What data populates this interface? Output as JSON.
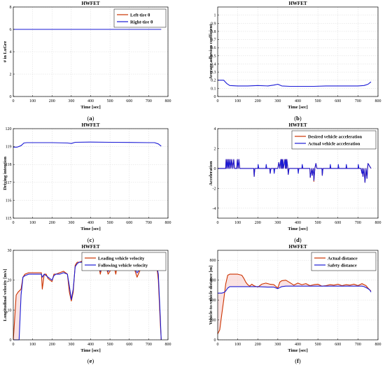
{
  "figure": {
    "background": "#ffffff",
    "red": "#cc3300",
    "blue": "#1a1ad6",
    "fill": "#f6caca"
  },
  "chart_data": [
    {
      "id": "a",
      "type": "line",
      "caption_letter": "a",
      "title": "HWFET",
      "xlabel": "Time [sec]",
      "ylabel": "# in LuGre",
      "xlim": [
        0,
        800
      ],
      "ylim": [
        0,
        8
      ],
      "xticks": [
        0,
        100,
        200,
        300,
        400,
        500,
        600,
        700,
        800
      ],
      "yticks": [
        0,
        2,
        4,
        6,
        8
      ],
      "legend": "top-right",
      "series": [
        {
          "name": "Left-tire θ",
          "color": "#cc3300",
          "x": [
            0,
            765
          ],
          "y": [
            6,
            6
          ]
        },
        {
          "name": "Right-tire θ",
          "color": "#1a1ad6",
          "x": [
            0,
            765
          ],
          "y": [
            6,
            6
          ]
        }
      ]
    },
    {
      "id": "b",
      "type": "line",
      "caption_letter": "b",
      "title": "HWFET",
      "xlabel": "Time [sec]",
      "ylabel": "Average adhesion coefficient",
      "xlim": [
        0,
        800
      ],
      "ylim": [
        0,
        1.1
      ],
      "xticks": [
        0,
        100,
        200,
        300,
        400,
        500,
        600,
        700,
        800
      ],
      "yticks": [
        0,
        0.1,
        0.2,
        0.3,
        0.4,
        0.5,
        0.6,
        0.7,
        0.8,
        0.9,
        1
      ],
      "series": [
        {
          "name": "",
          "color": "#1a1ad6",
          "x": [
            0,
            30,
            45,
            60,
            100,
            150,
            200,
            250,
            280,
            300,
            320,
            360,
            420,
            480,
            540,
            600,
            650,
            700,
            730,
            750,
            765
          ],
          "y": [
            0.2,
            0.2,
            0.16,
            0.135,
            0.13,
            0.13,
            0.135,
            0.13,
            0.14,
            0.15,
            0.13,
            0.125,
            0.125,
            0.125,
            0.13,
            0.13,
            0.13,
            0.13,
            0.135,
            0.15,
            0.18
          ]
        }
      ]
    },
    {
      "id": "c",
      "type": "line",
      "caption_letter": "c",
      "title": "HWFET",
      "xlabel": "Time [sec]",
      "ylabel": "Driving intention",
      "xlim": [
        0,
        800
      ],
      "ylim": [
        115,
        120
      ],
      "xticks": [
        0,
        100,
        200,
        300,
        400,
        500,
        600,
        700,
        800
      ],
      "yticks": [
        115,
        116,
        117,
        118,
        119,
        120
      ],
      "series": [
        {
          "name": "",
          "color": "#1a1ad6",
          "x": [
            0,
            20,
            40,
            55,
            70,
            100,
            200,
            280,
            300,
            320,
            400,
            500,
            600,
            700,
            730,
            750,
            765
          ],
          "y": [
            118.97,
            118.97,
            119.05,
            119.2,
            119.22,
            119.22,
            119.22,
            119.2,
            119.17,
            119.24,
            119.25,
            119.24,
            119.23,
            119.22,
            119.22,
            119.15,
            119.02
          ]
        }
      ]
    },
    {
      "id": "d",
      "type": "line",
      "caption_letter": "d",
      "title": "HWFET",
      "xlabel": "Time [sec]",
      "ylabel": "Acceleration",
      "xlim": [
        0,
        800
      ],
      "ylim": [
        -5,
        4
      ],
      "xticks": [
        0,
        100,
        200,
        300,
        400,
        500,
        600,
        700,
        800
      ],
      "yticks": [
        -4,
        -2,
        0,
        2,
        4
      ],
      "legend": "top-right",
      "series": [
        {
          "name": "Desired vehicle acceleration",
          "color": "#cc3300",
          "x": [
            0,
            40,
            42,
            45,
            48,
            52,
            55,
            58,
            62,
            66,
            70,
            75,
            80,
            84,
            95,
            98,
            102,
            106,
            110,
            115,
            180,
            182,
            185,
            188,
            260,
            262,
            265,
            268,
            300,
            305,
            310,
            315,
            318,
            320,
            322,
            325,
            328,
            335,
            338,
            340,
            343,
            345,
            350,
            352,
            356,
            360,
            365,
            460,
            462,
            470,
            472,
            478,
            480,
            485,
            490,
            495,
            520,
            522,
            525,
            528,
            715,
            720,
            722,
            725,
            730,
            735,
            740,
            745,
            748,
            750,
            765
          ],
          "y": [
            0,
            0,
            0.9,
            0,
            0.9,
            0,
            0.9,
            0,
            0.9,
            0,
            0.9,
            0,
            0.9,
            0,
            0,
            0.9,
            0,
            0.9,
            0,
            0,
            0,
            -0.8,
            0,
            0,
            0,
            -0.5,
            0,
            0,
            0,
            0.6,
            0,
            0.9,
            0,
            0.9,
            0,
            0.9,
            0,
            0.9,
            0,
            0.9,
            0,
            0.9,
            0,
            -0.6,
            0,
            0,
            0,
            0,
            -0.9,
            0,
            -0.7,
            0,
            -1.3,
            0,
            0.5,
            0,
            0,
            -0.7,
            0,
            0,
            0,
            -0.5,
            0,
            -0.8,
            0,
            -1.4,
            0,
            -1,
            0,
            0.5,
            0
          ]
        },
        {
          "name": "Actual vehicle acceleration",
          "color": "#1a1ad6",
          "x": [
            0,
            40,
            42,
            45,
            48,
            52,
            55,
            58,
            62,
            66,
            70,
            75,
            80,
            84,
            95,
            98,
            102,
            106,
            110,
            115,
            180,
            182,
            185,
            188,
            200,
            202,
            205,
            208,
            240,
            242,
            245,
            248,
            260,
            262,
            265,
            268,
            280,
            282,
            285,
            288,
            300,
            305,
            310,
            315,
            318,
            320,
            322,
            325,
            328,
            335,
            338,
            340,
            343,
            345,
            350,
            352,
            356,
            360,
            365,
            400,
            402,
            405,
            408,
            420,
            422,
            425,
            428,
            460,
            462,
            470,
            472,
            478,
            480,
            485,
            490,
            495,
            520,
            522,
            525,
            528,
            560,
            562,
            565,
            568,
            600,
            602,
            605,
            608,
            640,
            642,
            645,
            648,
            700,
            702,
            705,
            708,
            715,
            720,
            722,
            725,
            730,
            735,
            740,
            745,
            748,
            750,
            765
          ],
          "y": [
            0,
            0,
            0.9,
            0,
            0.9,
            0,
            0.9,
            0,
            0.9,
            0,
            0.9,
            0,
            0.9,
            0,
            0,
            0.9,
            0,
            0.9,
            0,
            0,
            0,
            -0.8,
            0,
            0,
            0,
            0.4,
            0,
            0,
            0,
            0.4,
            0,
            0,
            0,
            -0.5,
            0,
            0,
            0,
            -0.5,
            0,
            0,
            0,
            0.6,
            0,
            0.9,
            0,
            0.9,
            0,
            0.9,
            0,
            0.9,
            0,
            0.9,
            0,
            0.9,
            0,
            -0.6,
            0,
            0,
            0,
            0,
            -0.5,
            0,
            0,
            0,
            0.4,
            0,
            0,
            0,
            -0.9,
            0,
            -0.7,
            0,
            -1.2,
            0,
            0.5,
            0,
            0,
            -0.7,
            0,
            0,
            0,
            0.4,
            0,
            0,
            0,
            0.4,
            0,
            0,
            0,
            0.4,
            0,
            0,
            0,
            0.4,
            0,
            0,
            0,
            -0.5,
            0,
            -0.8,
            0,
            -1.4,
            0,
            -1,
            0,
            0.5,
            0
          ]
        }
      ]
    },
    {
      "id": "e",
      "type": "line",
      "caption_letter": "e",
      "title": "HWFET",
      "xlabel": "Time [sec]",
      "ylabel": "Longitudinal velocity [m/s]",
      "xlim": [
        0,
        800
      ],
      "ylim": [
        0,
        30
      ],
      "xticks": [
        0,
        100,
        200,
        300,
        400,
        500,
        600,
        700,
        800
      ],
      "yticks": [
        0,
        10,
        20,
        30
      ],
      "legend": "top-right",
      "series": [
        {
          "name": "Leading vehicle velocity",
          "color": "#cc3300",
          "x": [
            0,
            5,
            15,
            25,
            40,
            50,
            60,
            80,
            110,
            130,
            145,
            150,
            160,
            170,
            180,
            200,
            210,
            220,
            240,
            260,
            280,
            290,
            300,
            310,
            320,
            330,
            340,
            360,
            380,
            400,
            420,
            440,
            450,
            460,
            470,
            480,
            490,
            500,
            510,
            520,
            530,
            540,
            560,
            580,
            600,
            620,
            640,
            660,
            680,
            700,
            720,
            730,
            740,
            750,
            760,
            765
          ],
          "y": [
            0,
            5,
            15,
            16,
            17,
            21,
            22,
            22.5,
            22.5,
            22.5,
            22.5,
            17,
            22,
            22,
            20.5,
            19.5,
            22,
            22,
            22.5,
            23,
            22,
            16,
            13,
            16,
            25,
            26,
            26,
            26.5,
            26,
            26.5,
            26,
            25.5,
            22,
            25,
            25,
            24.5,
            22,
            23,
            25,
            25,
            22,
            26,
            24,
            24,
            25,
            25,
            21,
            24,
            25,
            24,
            25,
            27,
            26,
            20,
            6,
            0
          ]
        },
        {
          "name": "Following vehicle velocity",
          "color": "#1a1ad6",
          "x": [
            0,
            10,
            20,
            30,
            40,
            50,
            60,
            80,
            110,
            130,
            145,
            150,
            160,
            170,
            180,
            200,
            210,
            220,
            240,
            260,
            280,
            290,
            300,
            310,
            320,
            330,
            340,
            360,
            380,
            400,
            420,
            440,
            450,
            460,
            470,
            480,
            490,
            500,
            510,
            520,
            530,
            540,
            560,
            580,
            600,
            620,
            640,
            660,
            680,
            700,
            720,
            730,
            740,
            750,
            760,
            765
          ],
          "y": [
            0,
            0,
            0,
            0,
            15,
            21,
            21.5,
            22,
            22,
            22,
            22,
            21,
            22,
            21.5,
            21,
            20,
            21.5,
            22,
            22,
            22.5,
            22,
            18,
            13.5,
            17,
            24.5,
            25.5,
            26,
            26,
            25.5,
            26,
            25.5,
            25.5,
            23,
            24.5,
            24.5,
            24,
            23,
            23.5,
            24.5,
            24.5,
            23.5,
            25,
            24,
            24,
            24.5,
            24.5,
            22.5,
            24,
            24.5,
            24,
            24.5,
            26.5,
            25.5,
            22,
            8,
            0
          ]
        }
      ]
    },
    {
      "id": "f",
      "type": "line",
      "caption_letter": "f",
      "title": "HWFET",
      "xlabel": "Time [sec]",
      "ylabel": "Vehicle-to-vehicle distance [m]",
      "xlim": [
        0,
        800
      ],
      "ylim": [
        0,
        900
      ],
      "xticks": [
        0,
        100,
        200,
        300,
        400,
        500,
        600,
        700,
        800
      ],
      "yticks": [
        0,
        200,
        400,
        600,
        800
      ],
      "legend": "top-right",
      "series": [
        {
          "name": "Actual distance",
          "color": "#cc3300",
          "x": [
            0,
            10,
            20,
            30,
            40,
            50,
            60,
            80,
            100,
            120,
            130,
            140,
            150,
            160,
            170,
            180,
            200,
            220,
            240,
            260,
            280,
            300,
            310,
            320,
            340,
            360,
            380,
            400,
            420,
            440,
            460,
            480,
            500,
            520,
            540,
            560,
            580,
            600,
            620,
            640,
            660,
            680,
            700,
            720,
            730,
            740,
            750,
            760,
            765
          ],
          "y": [
            60,
            100,
            250,
            400,
            560,
            650,
            660,
            660,
            660,
            650,
            620,
            580,
            555,
            540,
            560,
            545,
            530,
            560,
            570,
            560,
            555,
            520,
            580,
            595,
            600,
            575,
            550,
            570,
            555,
            565,
            545,
            555,
            560,
            540,
            545,
            555,
            550,
            560,
            545,
            555,
            550,
            560,
            545,
            565,
            555,
            545,
            520,
            500,
            490
          ]
        },
        {
          "name": "Safety distance",
          "color": "#1a1ad6",
          "x": [
            0,
            10,
            20,
            30,
            40,
            50,
            60,
            80,
            100,
            150,
            200,
            250,
            280,
            300,
            310,
            320,
            340,
            360,
            400,
            450,
            500,
            550,
            600,
            650,
            700,
            720,
            730,
            740,
            750,
            760,
            765
          ],
          "y": [
            470,
            470,
            470,
            475,
            490,
            520,
            535,
            535,
            535,
            535,
            535,
            530,
            530,
            515,
            525,
            535,
            540,
            540,
            540,
            540,
            540,
            540,
            540,
            540,
            540,
            540,
            535,
            525,
            515,
            500,
            480
          ]
        }
      ]
    }
  ]
}
